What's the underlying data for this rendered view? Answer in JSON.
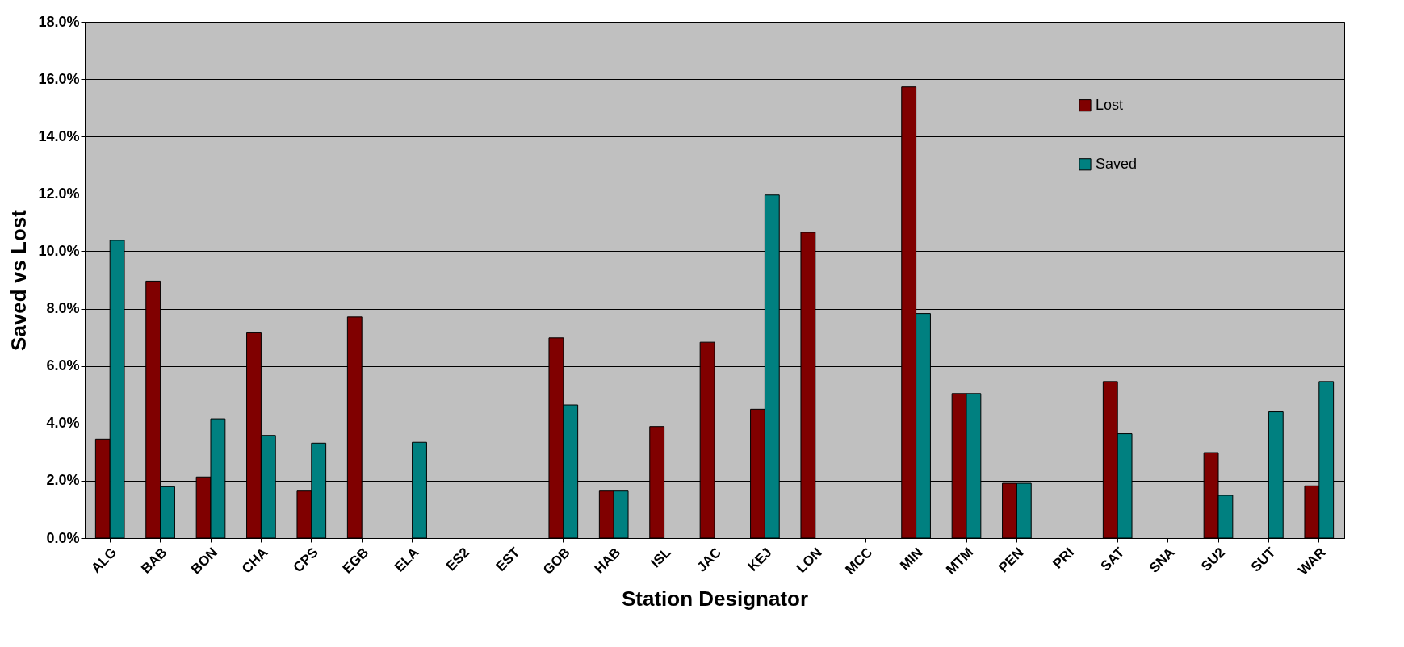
{
  "chart_data": {
    "type": "bar",
    "xlabel": "Station Designator",
    "ylabel": "Saved vs Lost",
    "categories": [
      "ALG",
      "BAB",
      "BON",
      "CHA",
      "CPS",
      "EGB",
      "ELA",
      "ES2",
      "EST",
      "GOB",
      "HAB",
      "ISL",
      "JAC",
      "KEJ",
      "LON",
      "MCC",
      "MIN",
      "MTM",
      "PEN",
      "PRI",
      "SAT",
      "SNA",
      "SU2",
      "SUT",
      "WAR"
    ],
    "series": [
      {
        "name": "Lost",
        "color": "#800000",
        "values": [
          3.45,
          8.96,
          2.13,
          7.16,
          1.64,
          7.71,
          null,
          null,
          null,
          6.98,
          1.64,
          3.89,
          6.83,
          4.49,
          10.66,
          null,
          15.73,
          5.04,
          1.91,
          null,
          5.46,
          null,
          2.98,
          null,
          1.82
        ]
      },
      {
        "name": "Saved",
        "color": "#008080",
        "values": [
          10.38,
          1.79,
          4.16,
          3.58,
          3.31,
          null,
          3.34,
          null,
          null,
          4.64,
          1.64,
          null,
          null,
          11.96,
          null,
          null,
          7.83,
          5.04,
          1.91,
          null,
          3.64,
          null,
          1.49,
          4.4,
          5.46
        ]
      }
    ],
    "ylim": [
      0,
      18
    ],
    "yticks": [
      {
        "value": 0,
        "label": "0.0%"
      },
      {
        "value": 2,
        "label": "2.0%"
      },
      {
        "value": 4,
        "label": "4.0%"
      },
      {
        "value": 6,
        "label": "6.0%"
      },
      {
        "value": 8,
        "label": "8.0%"
      },
      {
        "value": 10,
        "label": "10.0%"
      },
      {
        "value": 12,
        "label": "12.0%"
      },
      {
        "value": 14,
        "label": "14.0%"
      },
      {
        "value": 16,
        "label": "16.0%"
      },
      {
        "value": 18,
        "label": "18.0%"
      }
    ],
    "grid": "y",
    "legend": "top right"
  }
}
